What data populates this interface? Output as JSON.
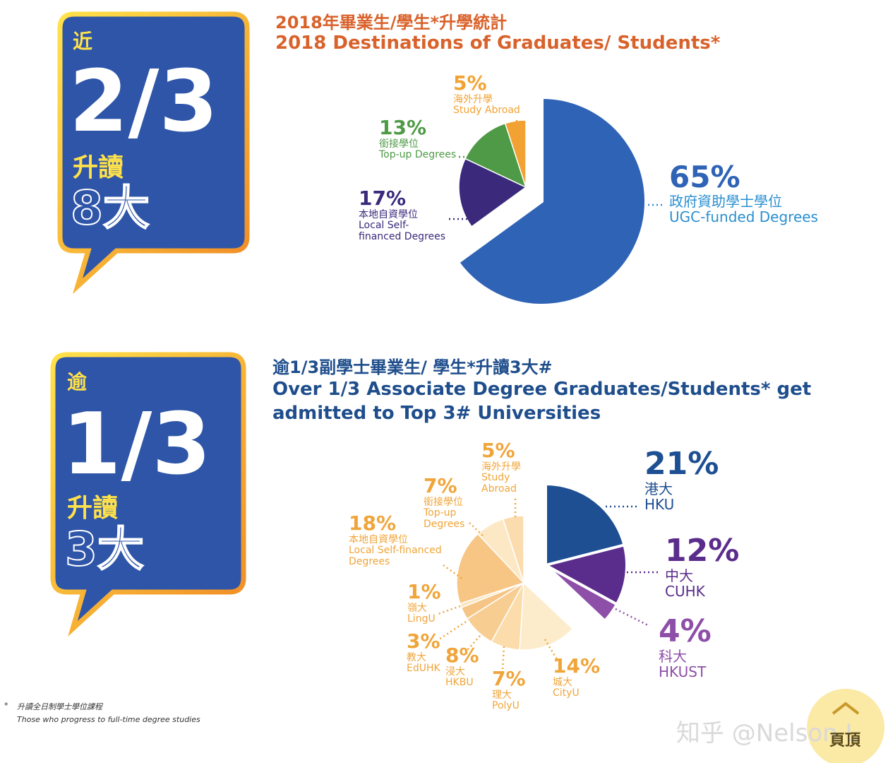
{
  "callouts": [
    {
      "prefix": "近",
      "fraction": "2/3",
      "verb": "升讀",
      "count": "8大"
    },
    {
      "prefix": "逾",
      "fraction": "1/3",
      "verb": "升讀",
      "count": "3大"
    }
  ],
  "chart_data": [
    {
      "type": "pie",
      "title_zh": "2018年畢業生/學生*升學統計",
      "title": "2018 Destinations of Graduates/ Students*",
      "categories_zh": [
        "政府資助學士學位",
        "本地自資學位",
        "銜接學位",
        "海外升學"
      ],
      "categories": [
        "UGC-funded Degrees",
        "Local Self-financed Degrees",
        "Top-up Degrees",
        "Study Abroad"
      ],
      "values": [
        65,
        17,
        13,
        5
      ],
      "value_labels": [
        "65%",
        "17%",
        "13%",
        "5%"
      ],
      "colors": [
        "#2f63b6",
        "#3b2a7c",
        "#4e9a46",
        "#f2a233"
      ],
      "exploded": [
        0
      ]
    },
    {
      "type": "pie",
      "title_zh": "逾1/3副學士畢業生/ 學生*升讀3大#",
      "title": "Over 1/3 Associate Degree Graduates/Students* get admitted to Top 3# Universities",
      "categories_zh": [
        "港大",
        "中大",
        "科大",
        "城大",
        "理大",
        "浸大",
        "教大",
        "嶺大",
        "本地自資學位",
        "銜接學位",
        "海外升學"
      ],
      "categories": [
        "HKU",
        "CUHK",
        "HKUST",
        "CityU",
        "PolyU",
        "HKBU",
        "EdUHK",
        "LingU",
        "Local Self-financed Degrees",
        "Top-up Degrees",
        "Study Abroad"
      ],
      "values": [
        21,
        12,
        4,
        14,
        7,
        8,
        3,
        1,
        18,
        7,
        5
      ],
      "value_labels": [
        "21%",
        "12%",
        "4%",
        "14%",
        "7%",
        "8%",
        "3%",
        "1%",
        "18%",
        "7%",
        "5%"
      ],
      "colors": [
        "#1d4f92",
        "#5a2c8c",
        "#8d4fa8",
        "#fdeccc",
        "#fbdcaa",
        "#f8cd92",
        "#f6c585",
        "#fce5bf",
        "#f7c584",
        "#fde8c6",
        "#fbdcae"
      ],
      "exploded": [
        0,
        1,
        2
      ]
    }
  ],
  "footnote": {
    "marker": "*",
    "zh": "升讀全日制學士學位課程",
    "en": "Those who progress to full-time degree studies"
  },
  "watermark": "知乎 @Nelson L",
  "back_to_top": "頁頂"
}
